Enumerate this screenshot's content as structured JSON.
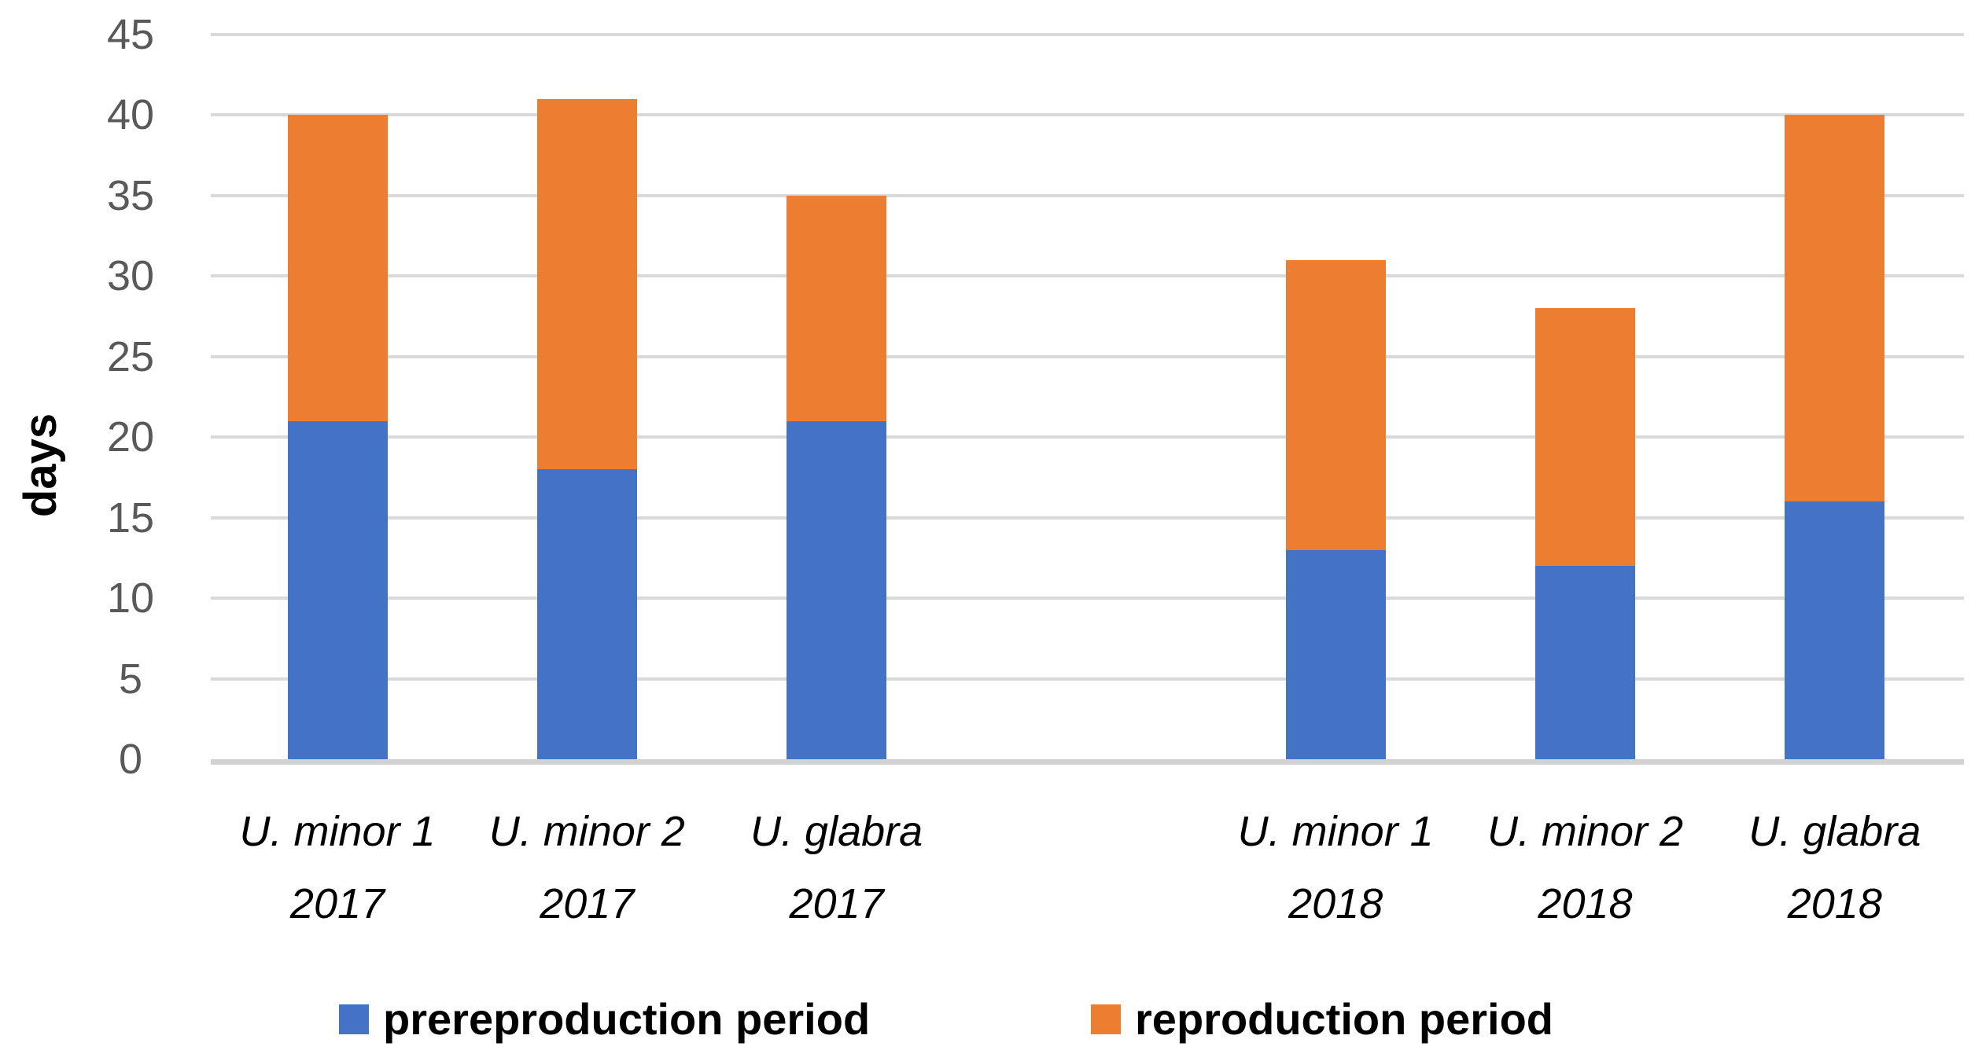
{
  "chart_data": {
    "type": "bar",
    "stacked": true,
    "title": "",
    "xlabel": "",
    "ylabel": "days",
    "ylim": [
      0,
      45
    ],
    "ytick_step": 5,
    "grid": true,
    "legend_position": "bottom",
    "categories": [
      {
        "line1": "U. minor 1",
        "line2": "2017"
      },
      {
        "line1": "U. minor 2",
        "line2": "2017"
      },
      {
        "line1": "U. glabra",
        "line2": "2017"
      },
      {
        "line1": "U. minor 1",
        "line2": "2018"
      },
      {
        "line1": "U. minor 2",
        "line2": "2018"
      },
      {
        "line1": "U. glabra",
        "line2": "2018"
      }
    ],
    "series": [
      {
        "name": "prereproduction period",
        "color": "#4472C4",
        "values": [
          21,
          18,
          21,
          13,
          12,
          16
        ]
      },
      {
        "name": "reproduction period",
        "color": "#ED7D31",
        "values": [
          19,
          23,
          14,
          18,
          16,
          24
        ]
      }
    ],
    "colors": {
      "prereproduction": "#4472C4",
      "reproduction": "#ED7D31",
      "gridline": "#D9D9D9",
      "tick_text": "#595959"
    }
  }
}
